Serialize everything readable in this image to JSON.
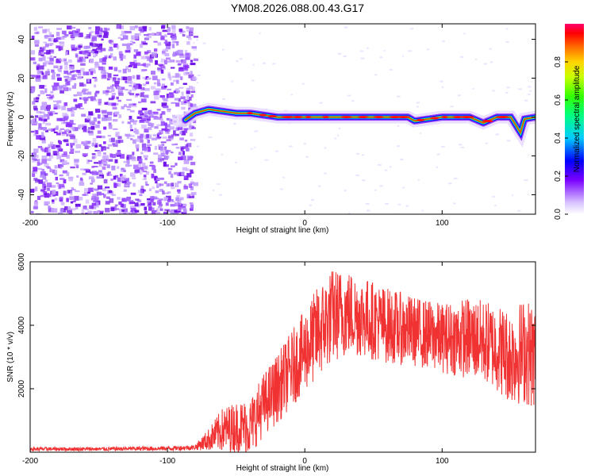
{
  "title": "YM08.2026.088.00.43.G17",
  "chart_data": [
    {
      "type": "heatmap",
      "id": "spectrogram",
      "xlabel": "Height of straight line (km)",
      "ylabel": "Frequency (Hz)",
      "xlim": [
        -200,
        168
      ],
      "ylim": [
        -50,
        48
      ],
      "xticks": [
        -200,
        -100,
        0,
        100
      ],
      "yticks": [
        -40,
        -20,
        0,
        20,
        40
      ],
      "xtick_labels": [
        "-200",
        "-100",
        "0",
        "100"
      ],
      "ytick_labels": [
        "-40",
        "-20",
        "0",
        "20",
        "40"
      ],
      "colorbar": {
        "label": "Normalized spectral amplitude",
        "range": [
          0,
          1
        ],
        "ticks": [
          0,
          0.2,
          0.4,
          0.6,
          0.8
        ],
        "tick_labels": [
          "0.0",
          "0.2",
          "0.4",
          "0.6",
          "0.8"
        ]
      },
      "regions": [
        {
          "x_range": [
            -200,
            -85
          ],
          "description": "broadband noise, amplitude ~0.1-0.2"
        },
        {
          "x_range": [
            -85,
            168
          ],
          "description": "narrow carrier line near 0 Hz, amplitude up to ~1.0"
        }
      ],
      "carrier_line": {
        "x": [
          -88,
          -80,
          -70,
          -60,
          -50,
          -40,
          -30,
          -20,
          0,
          20,
          40,
          60,
          75,
          80,
          90,
          100,
          120,
          130,
          140,
          150,
          157,
          160,
          168
        ],
        "freq": [
          -2,
          2,
          4,
          3,
          2,
          2,
          1,
          0,
          0,
          0,
          0,
          0,
          0,
          -2,
          -1,
          0,
          0,
          -3,
          0,
          0,
          -8,
          -1,
          0
        ]
      }
    },
    {
      "type": "line",
      "id": "snr",
      "xlabel": "Height of straight line (km)",
      "ylabel": "SNR (10 * v/v)",
      "xlim": [
        -200,
        168
      ],
      "ylim": [
        0,
        6000
      ],
      "xticks": [
        -200,
        -100,
        0,
        100
      ],
      "yticks": [
        2000,
        4000,
        6000
      ],
      "xtick_labels": [
        "-200",
        "-100",
        "0",
        "100"
      ],
      "ytick_labels": [
        "2000",
        "4000",
        "6000"
      ],
      "color": "#f03232",
      "envelope": {
        "x": [
          -200,
          -150,
          -100,
          -80,
          -70,
          -60,
          -50,
          -40,
          -30,
          -20,
          -10,
          0,
          10,
          20,
          30,
          40,
          60,
          80,
          100,
          110,
          120,
          130,
          140,
          150,
          160,
          168
        ],
        "mean": [
          100,
          100,
          120,
          150,
          400,
          700,
          800,
          800,
          1500,
          2000,
          2600,
          3200,
          3800,
          4300,
          4400,
          4300,
          4000,
          3800,
          3600,
          3600,
          3600,
          3500,
          3300,
          3000,
          3200,
          3000
        ],
        "amp": [
          60,
          60,
          70,
          80,
          350,
          700,
          800,
          900,
          1000,
          1100,
          1200,
          1300,
          1500,
          1500,
          1400,
          1300,
          1200,
          1100,
          1100,
          1200,
          1300,
          1300,
          1400,
          1500,
          1700,
          1700
        ]
      }
    }
  ]
}
